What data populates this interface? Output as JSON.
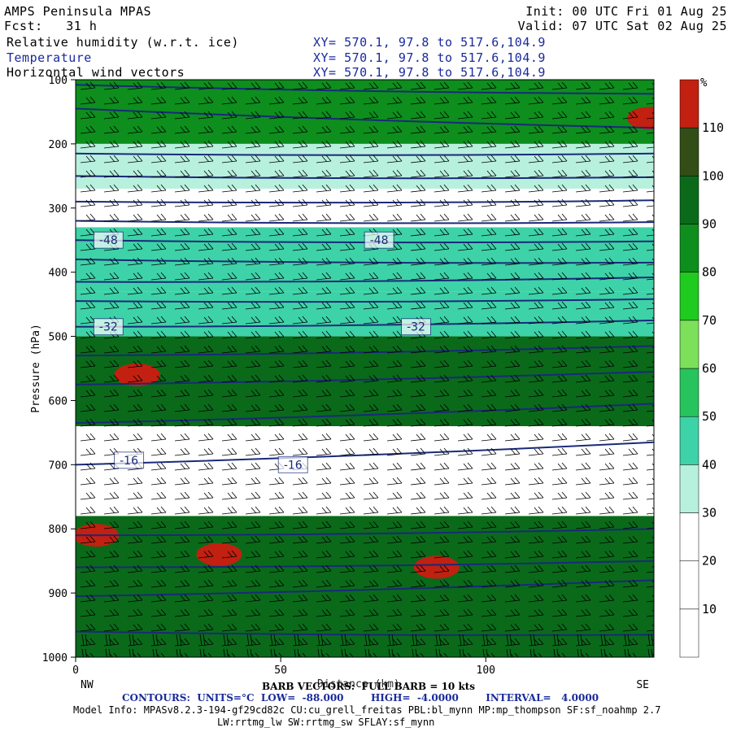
{
  "header": {
    "model_name": "AMPS Peninsula MPAS",
    "forecast": "Fcst:   31 h",
    "init": "Init: 00 UTC Fri 01 Aug 25",
    "valid": "Valid: 07 UTC Sat 02 Aug 25",
    "fields": [
      {
        "name": "Relative humidity (w.r.t. ice)",
        "xy": "XY= 570.1, 97.8 to 517.6,104.9"
      },
      {
        "name": "Temperature",
        "xy": "XY= 570.1, 97.8 to 517.6,104.9"
      },
      {
        "name": "Horizontal wind vectors",
        "xy": "XY= 570.1, 97.8 to 517.6,104.9"
      }
    ]
  },
  "footer": {
    "barb_label": "BARB VECTORS:  FULL BARB = 10 kts",
    "distance_label": "Distance (km)",
    "contours_label": "CONTOURS:  UNITS=°C  LOW=  -88.000        HIGH=  -4.0000        INTERVAL=   4.0000",
    "model_info": "Model Info: MPASv8.2.3-194-gf29cd82c CU:cu_grell_freitas PBL:bl_mynn MP:mp_thompson SF:sf_noahmp 2.7",
    "model_info2": "LW:rrtmg_lw SW:rrtmg_sw SFLAY:sf_mynn"
  },
  "colors": {
    "rh_bands": [
      "#ffffff",
      "#ffffff",
      "#ffffff",
      "#b8f0de",
      "#3ed2a8",
      "#27c45d",
      "#7ce05a",
      "#1ecb1e",
      "#0d8e1d",
      "#0a6a1a",
      "#334d16",
      "#c22010"
    ],
    "temperature_contour": "#1a2a7a",
    "barbs": "#000000"
  },
  "chart_data": {
    "type": "heatmap",
    "title": "",
    "xlabel": "Distance (km)",
    "ylabel": "Pressure (hPa)",
    "xlim": [
      0,
      141
    ],
    "ylim": [
      1000,
      100
    ],
    "x_ticks": [
      0,
      50,
      100
    ],
    "y_ticks": [
      100,
      200,
      300,
      400,
      500,
      600,
      700,
      800,
      900,
      1000
    ],
    "x_end_labels": {
      "left": "NW",
      "right": "SE"
    },
    "colorbar": {
      "unit": "%",
      "ticks": [
        10,
        20,
        30,
        40,
        50,
        60,
        70,
        80,
        90,
        100,
        110
      ]
    },
    "rh_layers": [
      {
        "p_top": 100,
        "p_bottom": 200,
        "rh": 85
      },
      {
        "p_top": 200,
        "p_bottom": 270,
        "rh": 35
      },
      {
        "p_top": 270,
        "p_bottom": 330,
        "rh": 25
      },
      {
        "p_top": 330,
        "p_bottom": 430,
        "rh": 45
      },
      {
        "p_top": 430,
        "p_bottom": 500,
        "rh": 40
      },
      {
        "p_top": 500,
        "p_bottom": 640,
        "rh": 90
      },
      {
        "p_top": 640,
        "p_bottom": 780,
        "rh": 20
      },
      {
        "p_top": 780,
        "p_bottom": 1000,
        "rh": 95
      }
    ],
    "rh_maxima": [
      {
        "x": 15,
        "p": 560,
        "rh": 112
      },
      {
        "x": 5,
        "p": 810,
        "rh": 112
      },
      {
        "x": 35,
        "p": 840,
        "rh": 112
      },
      {
        "x": 88,
        "p": 860,
        "rh": 112
      },
      {
        "x": 140,
        "p": 160,
        "rh": 112
      }
    ],
    "contour_labels": [
      {
        "x": 8,
        "p": 350,
        "text": "-48"
      },
      {
        "x": 74,
        "p": 350,
        "text": "-48"
      },
      {
        "x": 8,
        "p": 485,
        "text": "-32"
      },
      {
        "x": 83,
        "p": 485,
        "text": "-32"
      },
      {
        "x": 13,
        "p": 693,
        "text": "-16"
      },
      {
        "x": 53,
        "p": 700,
        "text": "-16"
      }
    ],
    "isotherms": [
      {
        "p_left": 108,
        "p_right": 122
      },
      {
        "p_left": 145,
        "p_right": 175
      },
      {
        "p_left": 215,
        "p_right": 215
      },
      {
        "p_left": 250,
        "p_right": 252
      },
      {
        "p_left": 290,
        "p_right": 288
      },
      {
        "p_left": 320,
        "p_right": 322
      },
      {
        "p_left": 350,
        "p_right": 352
      },
      {
        "p_left": 380,
        "p_right": 385
      },
      {
        "p_left": 415,
        "p_right": 408
      },
      {
        "p_left": 445,
        "p_right": 442
      },
      {
        "p_left": 485,
        "p_right": 475
      },
      {
        "p_left": 530,
        "p_right": 515
      },
      {
        "p_left": 575,
        "p_right": 555
      },
      {
        "p_left": 635,
        "p_right": 605
      },
      {
        "p_left": 700,
        "p_right": 665
      },
      {
        "p_left": 810,
        "p_right": 800
      },
      {
        "p_left": 860,
        "p_right": 850
      },
      {
        "p_left": 905,
        "p_right": 880
      },
      {
        "p_left": 960,
        "p_right": 965
      }
    ]
  }
}
